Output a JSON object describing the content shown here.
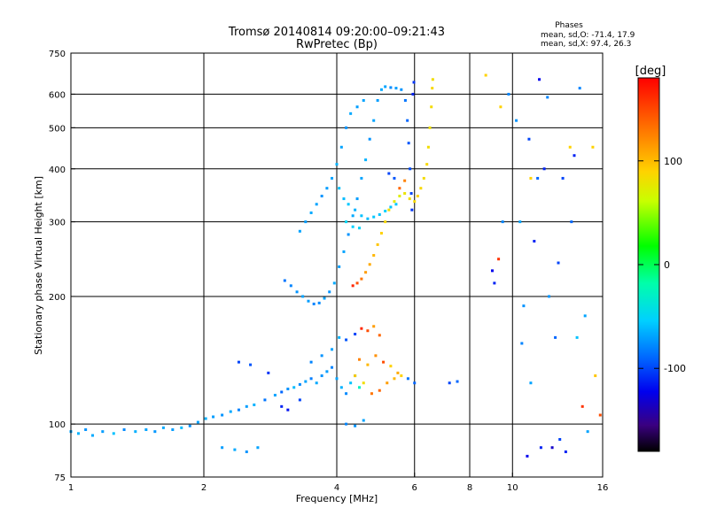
{
  "header": {
    "title_line1": "Tromsø 20140814 09:20:00–09:21:43",
    "title_line2": "RwPretec (Bp)",
    "phases_title": "Phases",
    "phases_o": "mean, sd,O: -71.4, 17.9",
    "phases_x": "mean, sd,X:  97.4, 26.3"
  },
  "colorbar": {
    "unit": "[deg]",
    "ticks": [
      {
        "value": 100,
        "label": "100"
      },
      {
        "value": 0,
        "label": "0"
      },
      {
        "value": -100,
        "label": "-100"
      }
    ],
    "range": [
      -180,
      180
    ]
  },
  "chart_data": {
    "type": "scatter",
    "title": "",
    "xlabel": "Frequency [MHz]",
    "ylabel": "Stationary phase Virtual Height [km]",
    "xscale": "log",
    "yscale": "log",
    "xlim": [
      1,
      16
    ],
    "ylim": [
      75,
      750
    ],
    "xticks": [
      {
        "v": 1,
        "label": "1"
      },
      {
        "v": 2,
        "label": "2"
      },
      {
        "v": 4,
        "label": "4"
      },
      {
        "v": 6,
        "label": "6"
      },
      {
        "v": 8,
        "label": "8"
      },
      {
        "v": 10,
        "label": "10"
      },
      {
        "v": 16,
        "label": "16"
      }
    ],
    "yticks": [
      {
        "v": 75,
        "label": "75"
      },
      {
        "v": 100,
        "label": "100"
      },
      {
        "v": 200,
        "label": "200"
      },
      {
        "v": 300,
        "label": "300"
      },
      {
        "v": 400,
        "label": "400"
      },
      {
        "v": 500,
        "label": "500"
      },
      {
        "v": 600,
        "label": "600"
      },
      {
        "v": 750,
        "label": "750"
      }
    ],
    "grid_x": [
      2,
      4,
      6,
      8,
      10
    ],
    "grid_y": [
      100,
      200,
      300,
      400,
      500,
      600
    ],
    "color_axis": "phase [deg]",
    "points": [
      [
        1.0,
        96,
        -70
      ],
      [
        1.04,
        95,
        -65
      ],
      [
        1.08,
        97,
        -75
      ],
      [
        1.12,
        94,
        -68
      ],
      [
        1.18,
        96,
        -72
      ],
      [
        1.25,
        95,
        -60
      ],
      [
        1.32,
        97,
        -78
      ],
      [
        1.4,
        96,
        -66
      ],
      [
        1.48,
        97,
        -70
      ],
      [
        1.55,
        96,
        -74
      ],
      [
        1.62,
        98,
        -68
      ],
      [
        1.7,
        97,
        -72
      ],
      [
        1.78,
        98,
        -62
      ],
      [
        1.86,
        99,
        -76
      ],
      [
        1.94,
        101,
        -70
      ],
      [
        2.02,
        103,
        -66
      ],
      [
        2.1,
        104,
        -72
      ],
      [
        2.2,
        105,
        -75
      ],
      [
        2.3,
        107,
        -68
      ],
      [
        2.4,
        108,
        -80
      ],
      [
        2.5,
        110,
        -72
      ],
      [
        2.6,
        111,
        -65
      ],
      [
        2.75,
        114,
        -85
      ],
      [
        2.9,
        117,
        -70
      ],
      [
        3.0,
        119,
        -90
      ],
      [
        3.1,
        121,
        -75
      ],
      [
        3.2,
        122,
        -62
      ],
      [
        3.3,
        124,
        -78
      ],
      [
        3.4,
        126,
        -70
      ],
      [
        3.5,
        128,
        -82
      ],
      [
        3.6,
        125,
        -68
      ],
      [
        3.7,
        130,
        -75
      ],
      [
        3.8,
        133,
        -72
      ],
      [
        3.9,
        136,
        -80
      ],
      [
        4.0,
        128,
        -70
      ],
      [
        4.1,
        122,
        -65
      ],
      [
        4.2,
        118,
        -78
      ],
      [
        4.3,
        125,
        -60
      ],
      [
        4.4,
        130,
        -45
      ],
      [
        4.5,
        122,
        -30
      ],
      [
        2.2,
        88,
        -72
      ],
      [
        2.35,
        87,
        -68
      ],
      [
        2.5,
        86,
        -75
      ],
      [
        2.65,
        88,
        -70
      ],
      [
        2.4,
        140,
        -100
      ],
      [
        2.55,
        138,
        -95
      ],
      [
        2.8,
        132,
        -105
      ],
      [
        3.0,
        110,
        -110
      ],
      [
        3.1,
        108,
        -115
      ],
      [
        3.3,
        114,
        -100
      ],
      [
        3.5,
        140,
        -80
      ],
      [
        3.7,
        145,
        -75
      ],
      [
        3.9,
        150,
        -70
      ],
      [
        4.05,
        160,
        -65
      ],
      [
        4.2,
        158,
        -95
      ],
      [
        4.4,
        163,
        -100
      ],
      [
        4.55,
        168,
        165
      ],
      [
        4.7,
        166,
        150
      ],
      [
        4.85,
        170,
        120
      ],
      [
        5.0,
        162,
        140
      ],
      [
        4.5,
        142,
        130
      ],
      [
        4.7,
        138,
        110
      ],
      [
        4.9,
        145,
        125
      ],
      [
        5.1,
        140,
        150
      ],
      [
        5.3,
        137,
        100
      ],
      [
        5.5,
        132,
        115
      ],
      [
        4.4,
        130,
        105
      ],
      [
        4.6,
        125,
        90
      ],
      [
        4.8,
        118,
        135
      ],
      [
        5.0,
        120,
        140
      ],
      [
        5.2,
        125,
        120
      ],
      [
        5.4,
        128,
        110
      ],
      [
        5.6,
        130,
        100
      ],
      [
        5.8,
        128,
        -85
      ],
      [
        6.0,
        125,
        -90
      ],
      [
        7.2,
        125,
        -100
      ],
      [
        7.5,
        126,
        -90
      ],
      [
        4.2,
        100,
        -80
      ],
      [
        4.4,
        99,
        -75
      ],
      [
        4.6,
        102,
        -70
      ],
      [
        3.05,
        218,
        -85
      ],
      [
        3.15,
        212,
        -80
      ],
      [
        3.25,
        205,
        -75
      ],
      [
        3.35,
        200,
        -70
      ],
      [
        3.45,
        195,
        -72
      ],
      [
        3.55,
        192,
        -80
      ],
      [
        3.65,
        193,
        -78
      ],
      [
        3.75,
        198,
        -70
      ],
      [
        3.85,
        205,
        -75
      ],
      [
        3.95,
        215,
        -68
      ],
      [
        4.05,
        235,
        -72
      ],
      [
        4.15,
        255,
        -70
      ],
      [
        4.25,
        280,
        -75
      ],
      [
        4.35,
        310,
        -68
      ],
      [
        4.45,
        340,
        -72
      ],
      [
        4.55,
        380,
        -70
      ],
      [
        4.65,
        420,
        -65
      ],
      [
        4.75,
        470,
        -75
      ],
      [
        4.85,
        520,
        -70
      ],
      [
        4.95,
        580,
        -72
      ],
      [
        5.05,
        615,
        -68
      ],
      [
        5.15,
        625,
        -70
      ],
      [
        5.3,
        622,
        -78
      ],
      [
        5.45,
        620,
        -72
      ],
      [
        5.6,
        615,
        -75
      ],
      [
        5.72,
        580,
        -85
      ],
      [
        5.78,
        520,
        -90
      ],
      [
        5.82,
        460,
        -95
      ],
      [
        5.86,
        400,
        -98
      ],
      [
        5.9,
        350,
        -100
      ],
      [
        5.92,
        320,
        -105
      ],
      [
        5.95,
        600,
        -110
      ],
      [
        5.98,
        640,
        -105
      ],
      [
        3.3,
        285,
        -70
      ],
      [
        3.4,
        300,
        -72
      ],
      [
        3.5,
        315,
        -68
      ],
      [
        3.6,
        330,
        -70
      ],
      [
        3.7,
        345,
        -75
      ],
      [
        3.8,
        360,
        -72
      ],
      [
        3.9,
        380,
        -70
      ],
      [
        4.0,
        410,
        -65
      ],
      [
        4.1,
        450,
        -70
      ],
      [
        4.2,
        500,
        -75
      ],
      [
        4.3,
        540,
        -68
      ],
      [
        4.45,
        560,
        -72
      ],
      [
        4.6,
        580,
        -70
      ],
      [
        4.05,
        360,
        -60
      ],
      [
        4.15,
        340,
        -62
      ],
      [
        4.25,
        330,
        -58
      ],
      [
        4.4,
        320,
        -65
      ],
      [
        4.55,
        310,
        -60
      ],
      [
        4.7,
        305,
        -62
      ],
      [
        4.85,
        308,
        -58
      ],
      [
        5.0,
        312,
        -60
      ],
      [
        5.15,
        318,
        -55
      ],
      [
        5.3,
        325,
        -60
      ],
      [
        5.45,
        330,
        -58
      ],
      [
        4.2,
        300,
        -50
      ],
      [
        4.35,
        292,
        -55
      ],
      [
        4.5,
        290,
        -52
      ],
      [
        4.35,
        212,
        165
      ],
      [
        4.45,
        215,
        150
      ],
      [
        4.55,
        220,
        135
      ],
      [
        4.65,
        228,
        120
      ],
      [
        4.75,
        238,
        115
      ],
      [
        4.85,
        250,
        110
      ],
      [
        4.95,
        265,
        105
      ],
      [
        5.05,
        282,
        100
      ],
      [
        5.15,
        300,
        95
      ],
      [
        5.25,
        320,
        90
      ],
      [
        5.4,
        335,
        80
      ],
      [
        5.55,
        345,
        75
      ],
      [
        5.7,
        350,
        85
      ],
      [
        5.85,
        340,
        90
      ],
      [
        6.0,
        335,
        95
      ],
      [
        6.1,
        345,
        100
      ],
      [
        6.2,
        360,
        95
      ],
      [
        6.3,
        380,
        92
      ],
      [
        6.4,
        410,
        95
      ],
      [
        6.45,
        450,
        90
      ],
      [
        6.5,
        500,
        88
      ],
      [
        6.55,
        560,
        92
      ],
      [
        6.58,
        620,
        95
      ],
      [
        6.6,
        650,
        90
      ],
      [
        5.55,
        360,
        140
      ],
      [
        5.7,
        375,
        130
      ],
      [
        5.4,
        380,
        -95
      ],
      [
        5.25,
        390,
        -100
      ],
      [
        8.7,
        665,
        100
      ],
      [
        9.0,
        230,
        -120
      ],
      [
        9.1,
        215,
        -110
      ],
      [
        9.3,
        245,
        160
      ],
      [
        9.5,
        300,
        -80
      ],
      [
        10.2,
        520,
        -75
      ],
      [
        10.4,
        300,
        -70
      ],
      [
        10.6,
        190,
        -75
      ],
      [
        10.9,
        470,
        -100
      ],
      [
        11.0,
        380,
        100
      ],
      [
        11.2,
        270,
        -110
      ],
      [
        11.5,
        650,
        -120
      ],
      [
        11.8,
        400,
        -110
      ],
      [
        12.0,
        590,
        -80
      ],
      [
        12.5,
        160,
        -90
      ],
      [
        12.7,
        240,
        -100
      ],
      [
        13.0,
        380,
        -100
      ],
      [
        13.5,
        450,
        100
      ],
      [
        13.8,
        430,
        -110
      ],
      [
        14.0,
        160,
        -60
      ],
      [
        14.2,
        620,
        -80
      ],
      [
        14.4,
        110,
        160
      ],
      [
        14.6,
        180,
        -70
      ],
      [
        15.2,
        450,
        100
      ],
      [
        15.4,
        130,
        105
      ],
      [
        15.8,
        105,
        150
      ],
      [
        12.8,
        92,
        -100
      ],
      [
        13.2,
        86,
        -110
      ],
      [
        14.8,
        96,
        -70
      ],
      [
        10.8,
        84,
        -120
      ],
      [
        11.6,
        88,
        -110
      ],
      [
        12.3,
        88,
        -130
      ],
      [
        11.0,
        125,
        -70
      ],
      [
        10.5,
        155,
        -80
      ],
      [
        9.8,
        600,
        -80
      ],
      [
        9.4,
        560,
        100
      ],
      [
        13.6,
        300,
        -90
      ],
      [
        12.1,
        200,
        -75
      ],
      [
        11.4,
        380,
        -90
      ]
    ]
  }
}
